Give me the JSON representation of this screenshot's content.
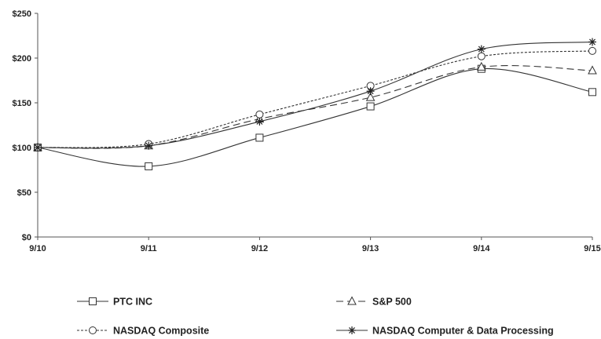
{
  "chart_data": {
    "type": "line",
    "categories": [
      "9/10",
      "9/11",
      "9/12",
      "9/13",
      "9/14",
      "9/15"
    ],
    "ylim": [
      0,
      250
    ],
    "yticks": [
      0,
      50,
      100,
      150,
      200,
      250
    ],
    "ytick_labels": [
      "$0",
      "$50",
      "$100",
      "$150",
      "$200",
      "$250"
    ],
    "grid": false,
    "legend_position": "bottom",
    "series": [
      {
        "name": "PTC INC",
        "values": [
          100,
          79,
          111,
          146,
          188,
          162
        ],
        "marker": "square",
        "dash": "solid"
      },
      {
        "name": "S&P 500",
        "values": [
          100,
          102,
          132,
          156,
          190,
          186
        ],
        "marker": "triangle",
        "dash": "long-dash"
      },
      {
        "name": "NASDAQ Composite",
        "values": [
          100,
          104,
          137,
          169,
          202,
          208
        ],
        "marker": "circle",
        "dash": "short-dash"
      },
      {
        "name": "NASDAQ Computer & Data Processing",
        "values": [
          100,
          102,
          129,
          163,
          210,
          218
        ],
        "marker": "star",
        "dash": "solid"
      }
    ]
  }
}
